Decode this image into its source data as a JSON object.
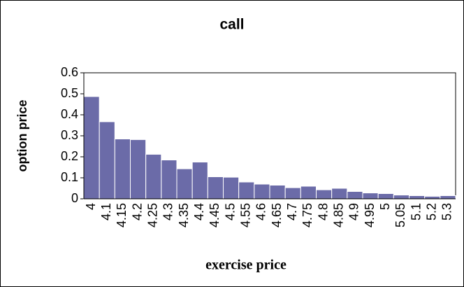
{
  "chart_data": {
    "type": "bar",
    "title": "call",
    "x_label": "exercise price",
    "y_label": "option price",
    "categories": [
      "4",
      "4.1",
      "4.15",
      "4.2",
      "4.25",
      "4.3",
      "4.35",
      "4.4",
      "4.45",
      "4.5",
      "4.55",
      "4.6",
      "4.65",
      "4.7",
      "4.75",
      "4.8",
      "4.85",
      "4.9",
      "4.95",
      "5",
      "5.05",
      "5.1",
      "5.2",
      "5.3"
    ],
    "values": [
      0.487,
      0.367,
      0.285,
      0.282,
      0.212,
      0.185,
      0.143,
      0.175,
      0.105,
      0.103,
      0.08,
      0.07,
      0.065,
      0.053,
      0.06,
      0.043,
      0.05,
      0.035,
      0.028,
      0.025,
      0.018,
      0.015,
      0.012,
      0.015
    ],
    "color": "#6b6ba8",
    "ylim": [
      0,
      0.6
    ],
    "yticks": [
      0,
      0.1,
      0.2,
      0.3,
      0.4,
      0.5,
      0.6
    ],
    "grid": false
  }
}
